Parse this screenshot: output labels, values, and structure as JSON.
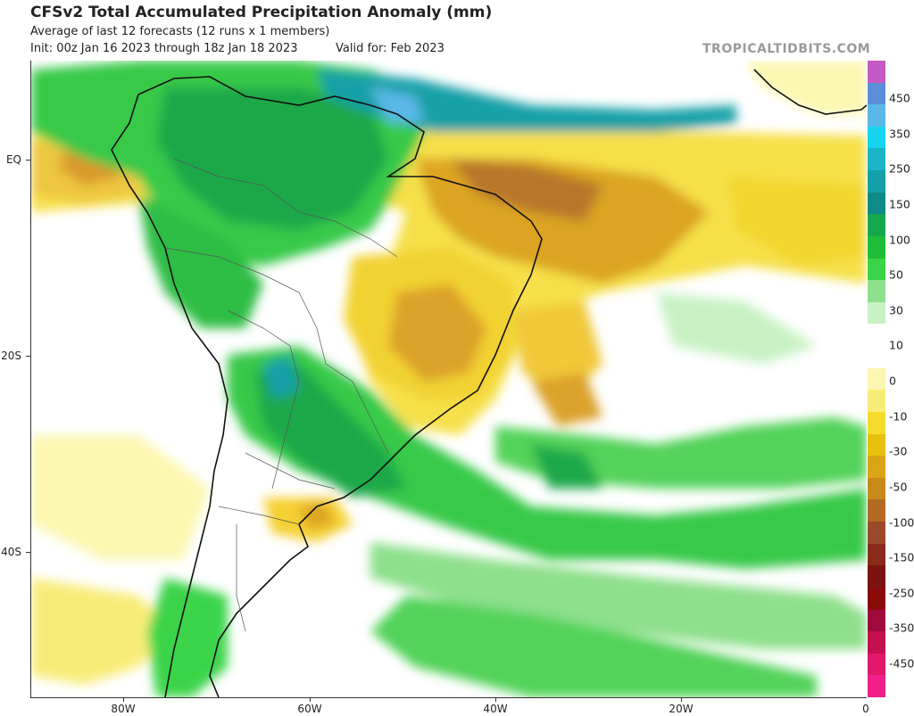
{
  "header": {
    "title": "CFSv2 Total Accumulated Precipitation Anomaly (mm)",
    "subtitle": "Average of last 12 forecasts (12 runs x 1 members)",
    "init": "Init: 00z Jan 16 2023 through 18z Jan 18 2023",
    "valid": "Valid for: Feb 2023",
    "brand": "TROPICALTIDBITS.COM"
  },
  "axes": {
    "lat_labels": [
      "EQ",
      "20S",
      "40S"
    ],
    "lon_labels": [
      "80W",
      "60W",
      "40W",
      "20W",
      "0"
    ]
  },
  "colorbar": {
    "labels": [
      "450",
      "350",
      "250",
      "150",
      "100",
      "50",
      "30",
      "10",
      "0",
      "-10",
      "-30",
      "-50",
      "-100",
      "-150",
      "-250",
      "-350",
      "-450"
    ],
    "colors": [
      "#c45bc4",
      "#5b8fd8",
      "#5ab8e8",
      "#17d3f0",
      "#1bb4c8",
      "#14a0a8",
      "#0f8a88",
      "#16a84e",
      "#1fbe3a",
      "#3ad448",
      "#8ee08c",
      "#c8f2c4",
      "#ffffff",
      "#ffffff",
      "#fcf7b0",
      "#f8ec78",
      "#f5dc2c",
      "#e8c010",
      "#d9a416",
      "#c98a1c",
      "#b36a24",
      "#9a4a2a",
      "#8a2a1a",
      "#7a1410",
      "#8a0a0a",
      "#a00a3c",
      "#c4104e",
      "#e0186a",
      "#f01f8a"
    ]
  }
}
